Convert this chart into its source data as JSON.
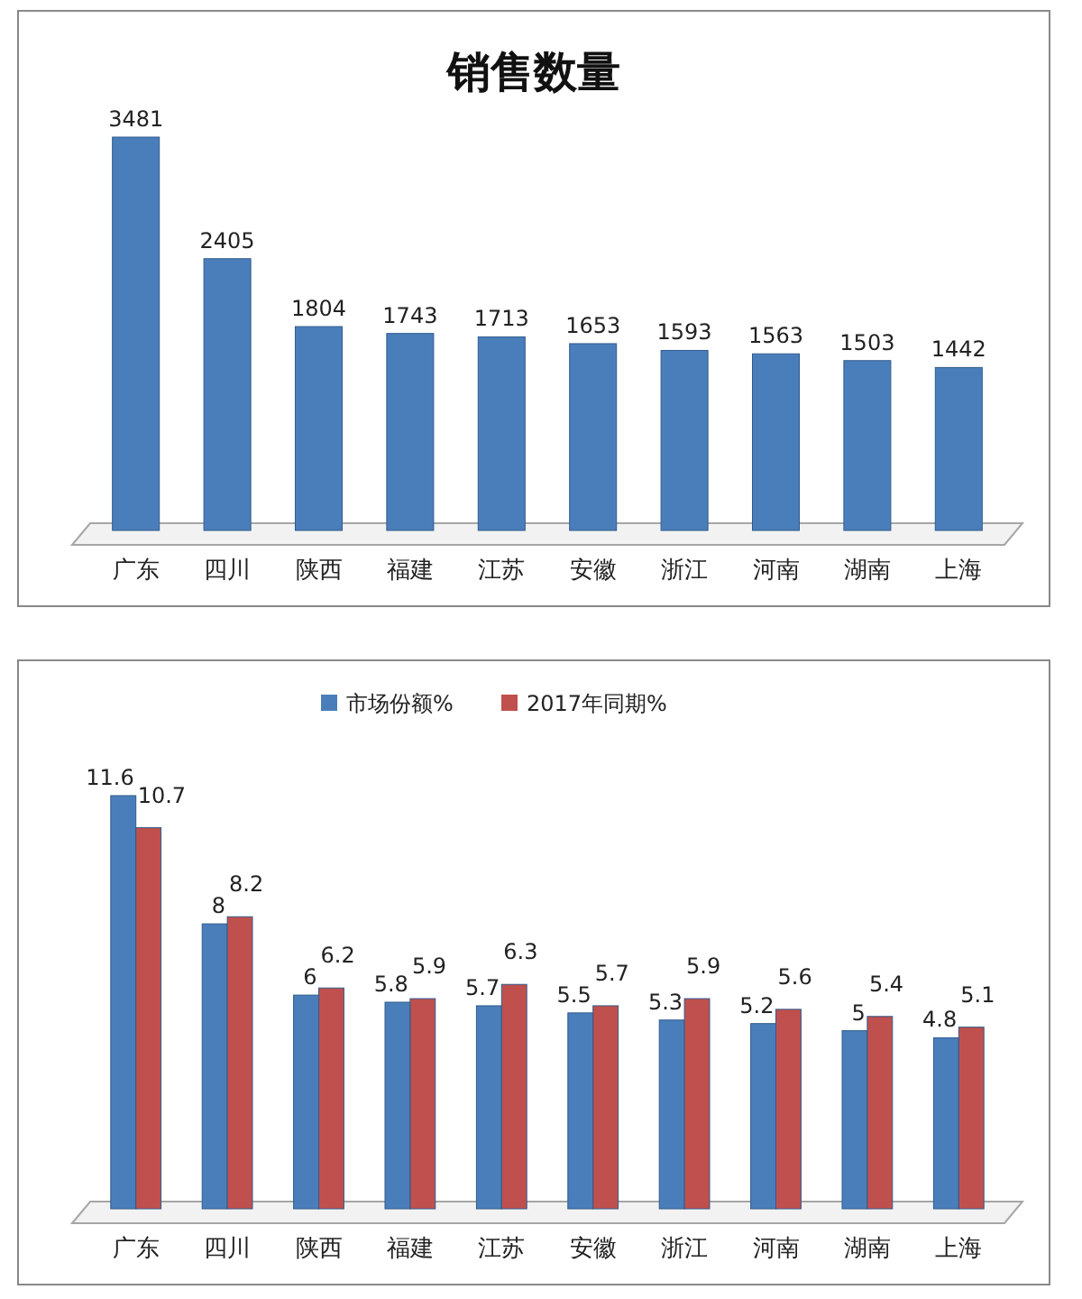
{
  "chart_data": [
    {
      "type": "bar",
      "title": "销售数量",
      "categories": [
        "广东",
        "四川",
        "陕西",
        "福建",
        "江苏",
        "安徽",
        "浙江",
        "河南",
        "湖南",
        "上海"
      ],
      "values": [
        3481,
        2405,
        1804,
        1743,
        1713,
        1653,
        1593,
        1563,
        1503,
        1442
      ],
      "color": "#4a7ebb",
      "data_labels": true
    },
    {
      "type": "bar",
      "categories": [
        "广东",
        "四川",
        "陕西",
        "福建",
        "江苏",
        "安徽",
        "浙江",
        "河南",
        "湖南",
        "上海"
      ],
      "series": [
        {
          "name": "市场份额%",
          "color": "#4a7ebb",
          "values": [
            11.6,
            8,
            6,
            5.8,
            5.7,
            5.5,
            5.3,
            5.2,
            5,
            4.8
          ]
        },
        {
          "name": "2017年同期%",
          "color": "#c0504d",
          "values": [
            10.7,
            8.2,
            6.2,
            5.9,
            6.3,
            5.7,
            5.9,
            5.6,
            5.4,
            5.1
          ]
        }
      ],
      "data_labels": true,
      "legend": "top"
    }
  ]
}
